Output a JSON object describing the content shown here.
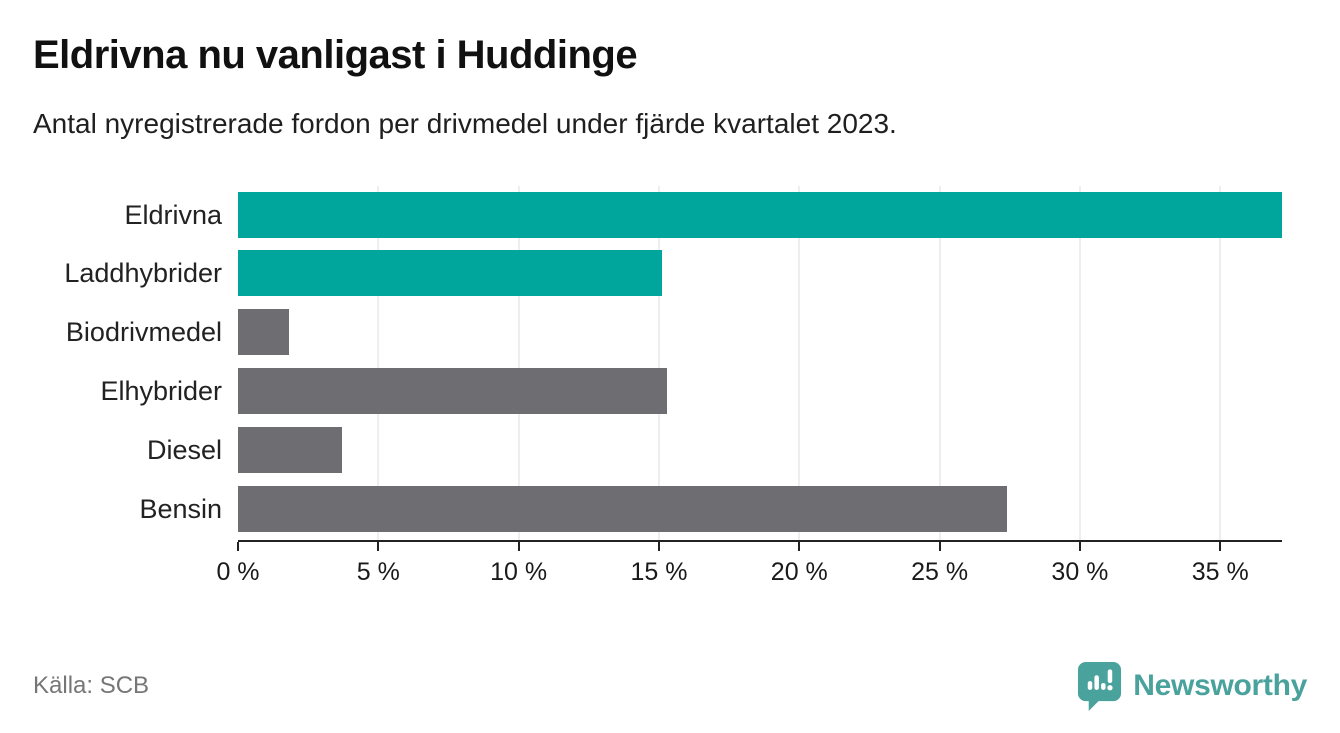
{
  "header": {
    "title": "Eldrivna nu vanligast i Huddinge",
    "subtitle": "Antal nyregistrerade fordon per drivmedel under fjärde kvartalet 2023."
  },
  "chart_data": {
    "type": "bar",
    "orientation": "horizontal",
    "title": "Eldrivna nu vanligast i Huddinge",
    "subtitle": "Antal nyregistrerade fordon per drivmedel under fjärde kvartalet 2023.",
    "categories": [
      "Eldrivna",
      "Laddhybrider",
      "Biodrivmedel",
      "Elhybrider",
      "Diesel",
      "Bensin"
    ],
    "values": [
      37.2,
      15.1,
      1.8,
      15.3,
      3.7,
      27.4
    ],
    "unit": "%",
    "bar_colors": [
      "#00a69b",
      "#00a69b",
      "#6d6d72",
      "#6d6d72",
      "#6d6d72",
      "#6d6d72"
    ],
    "highlight_color": "#00a69b",
    "default_color": "#6d6d72",
    "xlabel": "",
    "ylabel": "",
    "xlim": [
      0,
      37.2
    ],
    "x_ticks": [
      0,
      5,
      10,
      15,
      20,
      25,
      30,
      35
    ],
    "x_tick_labels": [
      "0 %",
      "5 %",
      "10 %",
      "15 %",
      "20 %",
      "25 %",
      "30 %",
      "35 %"
    ],
    "grid": "vertical",
    "gridline_color": "#dcdcdc",
    "legend": "none"
  },
  "footer": {
    "source": "Källa: SCB",
    "brand": "Newsworthy",
    "brand_color": "#4aa29c"
  }
}
